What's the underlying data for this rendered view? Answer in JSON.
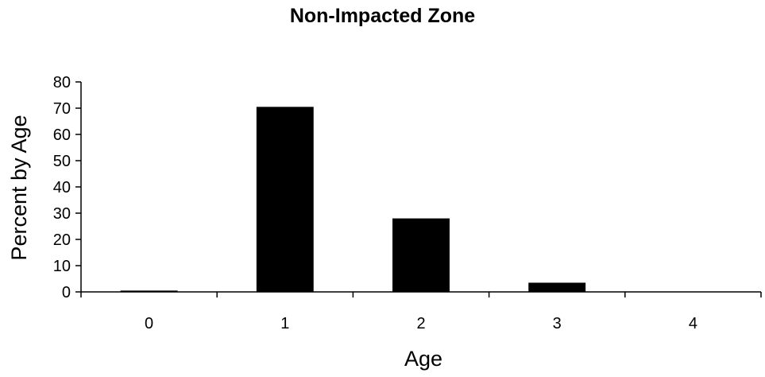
{
  "chart_data": {
    "type": "bar",
    "title": "Non-Impacted Zone",
    "xlabel": "Age",
    "ylabel": "Percent by Age",
    "categories": [
      "0",
      "1",
      "2",
      "3",
      "4"
    ],
    "values": [
      0.5,
      70.5,
      28,
      3.5,
      0
    ],
    "ylim": [
      0,
      80
    ],
    "yticks": [
      0,
      10,
      20,
      30,
      40,
      50,
      60,
      70,
      80
    ],
    "grid": false,
    "legend": "none",
    "bar_color": "#000000"
  }
}
